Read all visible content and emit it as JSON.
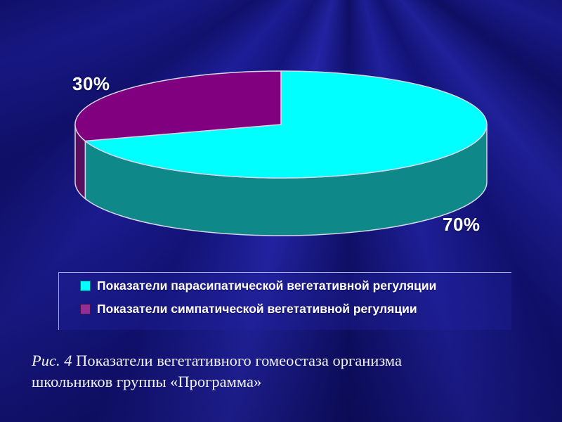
{
  "chart_data": {
    "type": "pie",
    "style": "3d-pie",
    "title": "",
    "labels": [
      "Показатели парасипатической вегетативной регуляции",
      "Показатели симпатической вегетативной регуляции"
    ],
    "values": [
      70,
      30
    ],
    "unit": "%",
    "data_labels": [
      "70%",
      "30%"
    ],
    "start_angle_deg": 90,
    "direction": "clockwise",
    "legend_position": "bottom",
    "colors": {
      "slice_tops": [
        "#00ffff",
        "#800080"
      ],
      "slice_sides": [
        "#0e8888",
        "#5a0e5e"
      ],
      "legend_swatches": [
        "#00ffff",
        "#942e94"
      ],
      "outline": "#d6d6e9"
    }
  },
  "background": {
    "base": "#13137e",
    "ray_dark": "#0a0a60",
    "ray_light": "#2323aa"
  },
  "caption": {
    "prefix": "Рис. 4",
    "body": " Показатели вегетативного гомеостаза организма школьников группы «Программа»"
  }
}
